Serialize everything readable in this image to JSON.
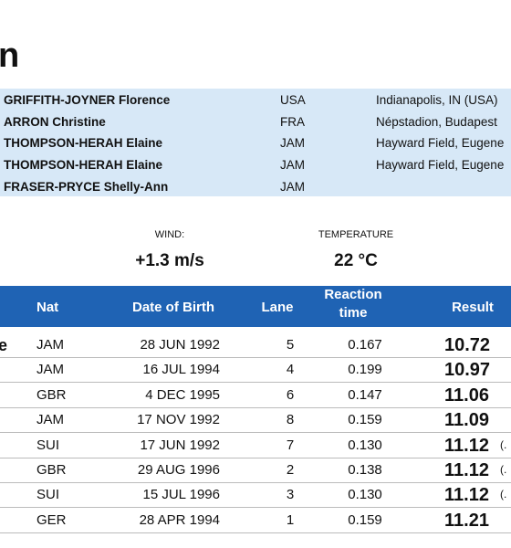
{
  "header": {
    "title": "n"
  },
  "records": [
    {
      "name": "GRIFFITH-JOYNER Florence",
      "nat": "USA",
      "venue": "Indianapolis, IN (USA)"
    },
    {
      "name": "ARRON Christine",
      "nat": "FRA",
      "venue": "Népstadion, Budapest"
    },
    {
      "name": "THOMPSON-HERAH Elaine",
      "nat": "JAM",
      "venue": "Hayward Field, Eugene"
    },
    {
      "name": "THOMPSON-HERAH Elaine",
      "nat": "JAM",
      "venue": "Hayward Field, Eugene"
    },
    {
      "name": "FRASER-PRYCE Shelly-Ann",
      "nat": "JAM"
    }
  ],
  "conditions": {
    "wind_label": "WIND:",
    "wind": "+1.3 m/s",
    "temperature_label": "TEMPERATURE",
    "temperature": "22 °C"
  },
  "table": {
    "columns": [
      "Nat",
      "Date of Birth",
      "Lane",
      "Reaction time",
      "Result"
    ],
    "rows": [
      {
        "name": "e",
        "nat": "JAM",
        "dob": "28 JUN 1992",
        "lane": "5",
        "reaction": "0.167",
        "result": "10.72"
      },
      {
        "nat": "JAM",
        "dob": "16 JUL 1994",
        "lane": "4",
        "reaction": "0.199",
        "result": "10.97"
      },
      {
        "nat": "GBR",
        "dob": "4 DEC 1995",
        "lane": "6",
        "reaction": "0.147",
        "result": "11.06"
      },
      {
        "nat": "JAM",
        "dob": "17 NOV 1992",
        "lane": "8",
        "reaction": "0.159",
        "result": "11.09"
      },
      {
        "nat": "SUI",
        "dob": "17 JUN 1992",
        "lane": "7",
        "reaction": "0.130",
        "result": "11.12",
        "note": "(."
      },
      {
        "nat": "GBR",
        "dob": "29 AUG 1996",
        "lane": "2",
        "reaction": "0.138",
        "result": "11.12",
        "note": "(."
      },
      {
        "nat": "SUI",
        "dob": "15 JUL 1996",
        "lane": "3",
        "reaction": "0.130",
        "result": "11.12",
        "note": "(."
      },
      {
        "nat": "GER",
        "dob": "28 APR 1994",
        "lane": "1",
        "reaction": "0.159",
        "result": "11.21"
      }
    ]
  }
}
